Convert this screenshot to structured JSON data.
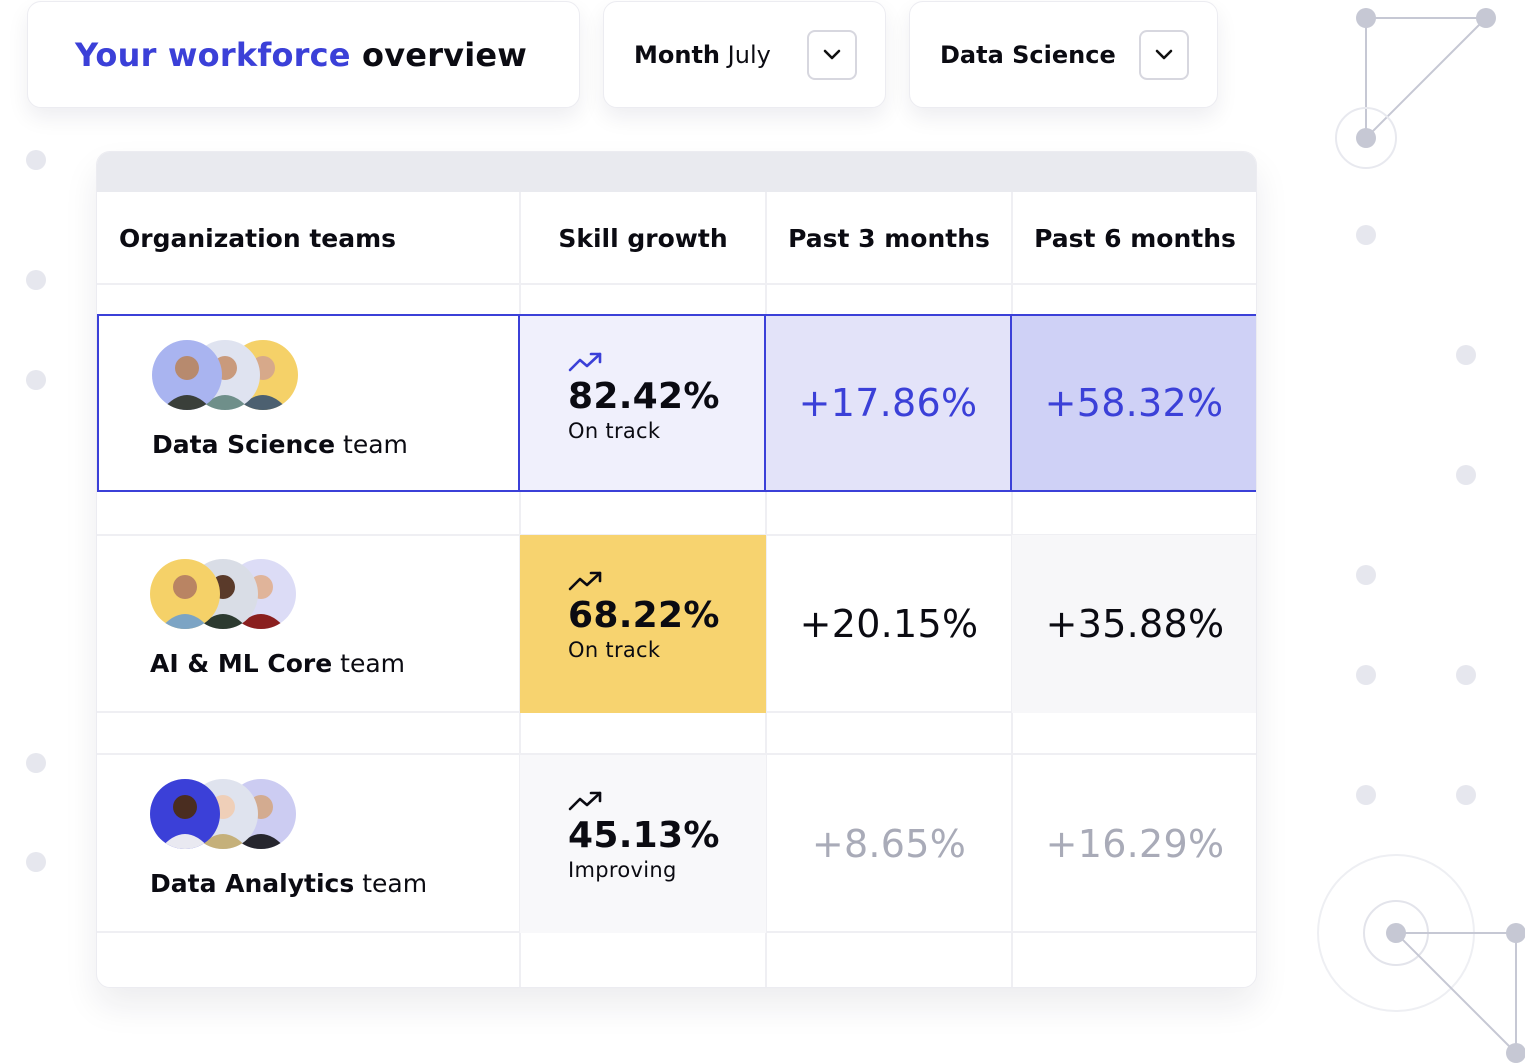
{
  "header": {
    "title_highlight": "Your workforce",
    "title_rest": "overview"
  },
  "filters": {
    "month_label": "Month",
    "month_value": "July",
    "team_value": "Data Science",
    "chevron_icon": "chevron-down-icon"
  },
  "table": {
    "columns": [
      "Organization teams",
      "Skill growth",
      "Past 3 months",
      "Past 6 months"
    ],
    "rows": [
      {
        "team_bold": "Data Science",
        "team_suffix": "team",
        "growth": "82.42%",
        "status": "On track",
        "past3": "+17.86%",
        "past6": "+58.32%",
        "highlighted": true,
        "trend_icon": "trending-up-icon",
        "avatar_colors": [
          "#a9b4f0",
          "#dfe3f0",
          "#f5d168"
        ]
      },
      {
        "team_bold": "AI & ML Core",
        "team_suffix": "team",
        "growth": "68.22%",
        "status": "On track",
        "past3": "+20.15%",
        "past6": "+35.88%",
        "highlighted": false,
        "trend_icon": "trending-up-icon",
        "avatar_colors": [
          "#f5d168",
          "#d9dde6",
          "#dcdcf6"
        ]
      },
      {
        "team_bold": "Data Analytics",
        "team_suffix": "team",
        "growth": "45.13%",
        "status": "Improving",
        "past3": "+8.65%",
        "past6": "+16.29%",
        "highlighted": false,
        "trend_icon": "trending-up-icon",
        "avatar_colors": [
          "#3b40d8",
          "#dfe3ee",
          "#ccccf2"
        ]
      }
    ]
  },
  "colors": {
    "accent": "#3b40d8",
    "highlight_yellow": "#f7d36f",
    "muted_text": "#a9abb8"
  }
}
